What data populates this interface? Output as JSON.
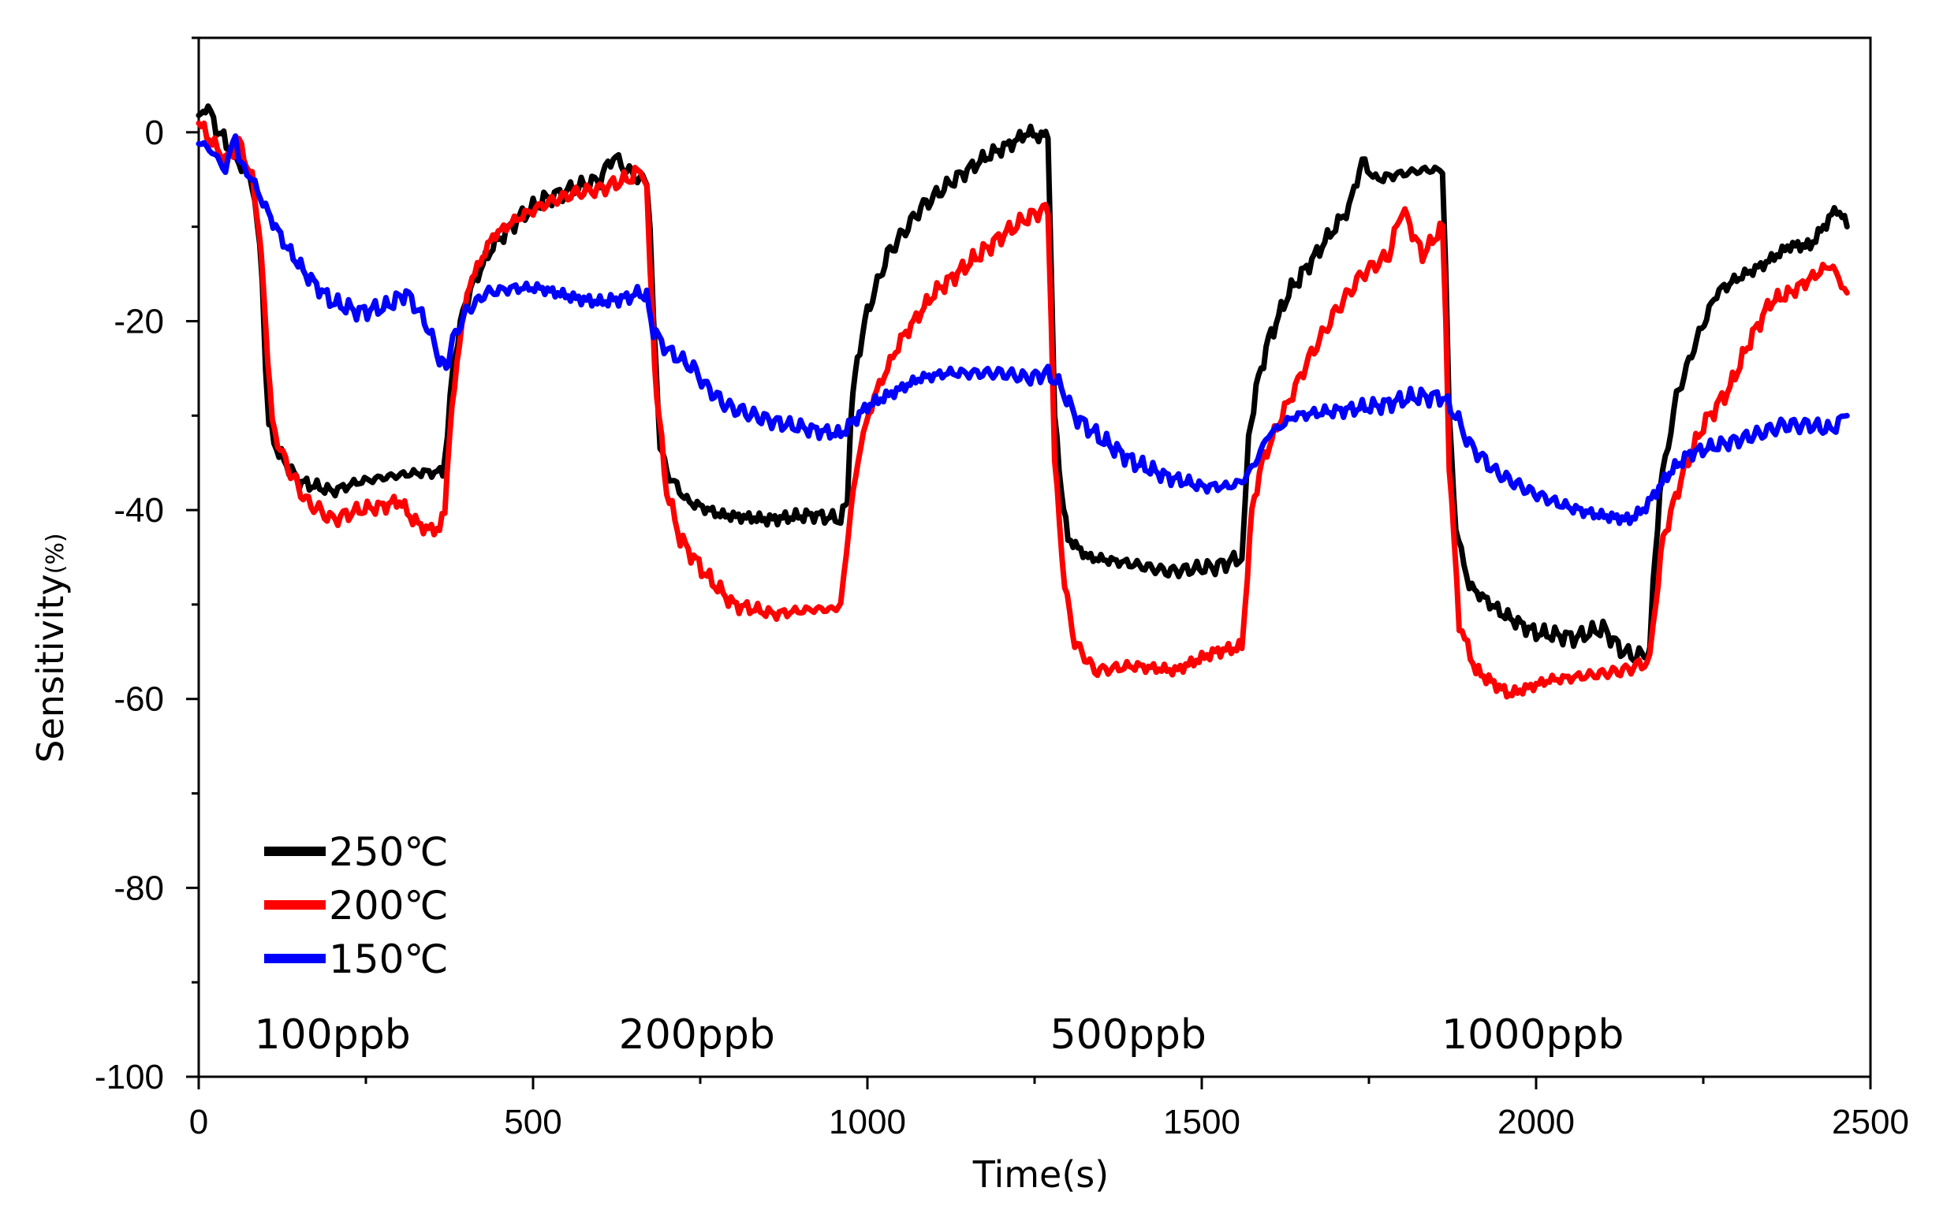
{
  "chart_data": {
    "type": "line",
    "title": "",
    "xlabel": "Time(s)",
    "ylabel": "Sensitivity",
    "ylabel_unit": "(%)",
    "xlim": [
      0,
      2500
    ],
    "ylim": [
      -100,
      10
    ],
    "x_ticks": [
      0,
      500,
      1000,
      1500,
      2000,
      2500
    ],
    "y_ticks": [
      0,
      -20,
      -40,
      -60,
      -80,
      -100
    ],
    "x_tick_labels": [
      "0",
      "500",
      "1000",
      "1500",
      "2000",
      "2500"
    ],
    "y_tick_labels": [
      "0",
      "-20",
      "-40",
      "-60",
      "-80",
      "-100"
    ],
    "grid": false,
    "legend_position": "bottom-left",
    "series": [
      {
        "name": "250℃",
        "color": "#000000",
        "points": [
          [
            0,
            1
          ],
          [
            10,
            3
          ],
          [
            30,
            0
          ],
          [
            60,
            -3
          ],
          [
            80,
            -5
          ],
          [
            95,
            -15
          ],
          [
            100,
            -25
          ],
          [
            105,
            -31
          ],
          [
            120,
            -34
          ],
          [
            150,
            -37
          ],
          [
            200,
            -38
          ],
          [
            240,
            -37
          ],
          [
            280,
            -36.5
          ],
          [
            310,
            -36.2
          ],
          [
            340,
            -36
          ],
          [
            365,
            -36
          ],
          [
            372,
            -32
          ],
          [
            380,
            -25
          ],
          [
            395,
            -19
          ],
          [
            410,
            -16
          ],
          [
            440,
            -12
          ],
          [
            480,
            -9
          ],
          [
            520,
            -7
          ],
          [
            560,
            -6
          ],
          [
            600,
            -5
          ],
          [
            620,
            -2.5
          ],
          [
            640,
            -4
          ],
          [
            660,
            -5
          ],
          [
            670,
            -5
          ],
          [
            675,
            -10
          ],
          [
            680,
            -20
          ],
          [
            690,
            -33
          ],
          [
            700,
            -36
          ],
          [
            730,
            -39
          ],
          [
            780,
            -40.5
          ],
          [
            850,
            -41
          ],
          [
            920,
            -40.5
          ],
          [
            960,
            -41
          ],
          [
            970,
            -39
          ],
          [
            975,
            -30
          ],
          [
            985,
            -24
          ],
          [
            1000,
            -19
          ],
          [
            1030,
            -13
          ],
          [
            1080,
            -8
          ],
          [
            1130,
            -5
          ],
          [
            1180,
            -2.5
          ],
          [
            1220,
            -1
          ],
          [
            1240,
            0
          ],
          [
            1260,
            -0.5
          ],
          [
            1270,
            0
          ],
          [
            1275,
            -15
          ],
          [
            1280,
            -30
          ],
          [
            1290,
            -38
          ],
          [
            1300,
            -43
          ],
          [
            1330,
            -45
          ],
          [
            1380,
            -45.5
          ],
          [
            1450,
            -46.5
          ],
          [
            1520,
            -46
          ],
          [
            1560,
            -45
          ],
          [
            1565,
            -40
          ],
          [
            1570,
            -32
          ],
          [
            1585,
            -26
          ],
          [
            1600,
            -22
          ],
          [
            1630,
            -17
          ],
          [
            1680,
            -12
          ],
          [
            1720,
            -8
          ],
          [
            1740,
            -3
          ],
          [
            1760,
            -5
          ],
          [
            1790,
            -4.5
          ],
          [
            1830,
            -4
          ],
          [
            1860,
            -4
          ],
          [
            1865,
            -15
          ],
          [
            1870,
            -30
          ],
          [
            1880,
            -42
          ],
          [
            1900,
            -48
          ],
          [
            1950,
            -51
          ],
          [
            2000,
            -53
          ],
          [
            2060,
            -53.5
          ],
          [
            2100,
            -52.5
          ],
          [
            2130,
            -55
          ],
          [
            2150,
            -55.5
          ],
          [
            2170,
            -55
          ],
          [
            2175,
            -48
          ],
          [
            2185,
            -38
          ],
          [
            2210,
            -28
          ],
          [
            2240,
            -22
          ],
          [
            2270,
            -17
          ],
          [
            2300,
            -15.5
          ],
          [
            2340,
            -14
          ],
          [
            2380,
            -12
          ],
          [
            2410,
            -12
          ],
          [
            2430,
            -10
          ],
          [
            2450,
            -8
          ],
          [
            2465,
            -10
          ]
        ]
      },
      {
        "name": "200℃",
        "color": "#ff0000",
        "points": [
          [
            0,
            1
          ],
          [
            20,
            -1
          ],
          [
            40,
            -3
          ],
          [
            60,
            -1
          ],
          [
            80,
            -5
          ],
          [
            90,
            -10
          ],
          [
            100,
            -20
          ],
          [
            110,
            -31
          ],
          [
            130,
            -35
          ],
          [
            160,
            -39
          ],
          [
            200,
            -41
          ],
          [
            240,
            -40
          ],
          [
            280,
            -39.5
          ],
          [
            300,
            -39
          ],
          [
            320,
            -41
          ],
          [
            340,
            -42
          ],
          [
            360,
            -42
          ],
          [
            368,
            -40
          ],
          [
            375,
            -32
          ],
          [
            390,
            -22
          ],
          [
            405,
            -16
          ],
          [
            440,
            -11
          ],
          [
            480,
            -9
          ],
          [
            520,
            -7.5
          ],
          [
            560,
            -6.5
          ],
          [
            600,
            -6
          ],
          [
            640,
            -5
          ],
          [
            665,
            -4
          ],
          [
            670,
            -6
          ],
          [
            675,
            -15
          ],
          [
            685,
            -28
          ],
          [
            700,
            -38
          ],
          [
            720,
            -43
          ],
          [
            760,
            -47
          ],
          [
            800,
            -50
          ],
          [
            860,
            -51
          ],
          [
            920,
            -50.5
          ],
          [
            950,
            -50.5
          ],
          [
            960,
            -50
          ],
          [
            965,
            -47
          ],
          [
            975,
            -40
          ],
          [
            990,
            -33
          ],
          [
            1010,
            -28
          ],
          [
            1050,
            -22
          ],
          [
            1100,
            -17
          ],
          [
            1150,
            -14
          ],
          [
            1200,
            -11
          ],
          [
            1240,
            -9
          ],
          [
            1270,
            -8
          ],
          [
            1275,
            -20
          ],
          [
            1280,
            -35
          ],
          [
            1295,
            -48
          ],
          [
            1310,
            -54
          ],
          [
            1340,
            -57
          ],
          [
            1400,
            -56.5
          ],
          [
            1460,
            -57
          ],
          [
            1520,
            -55
          ],
          [
            1560,
            -54.5
          ],
          [
            1565,
            -50
          ],
          [
            1575,
            -40
          ],
          [
            1590,
            -35
          ],
          [
            1620,
            -30
          ],
          [
            1660,
            -24
          ],
          [
            1700,
            -19
          ],
          [
            1740,
            -15
          ],
          [
            1780,
            -13
          ],
          [
            1800,
            -8
          ],
          [
            1830,
            -13
          ],
          [
            1860,
            -10
          ],
          [
            1865,
            -20
          ],
          [
            1870,
            -35
          ],
          [
            1885,
            -52
          ],
          [
            1910,
            -57
          ],
          [
            1960,
            -59.5
          ],
          [
            2020,
            -58
          ],
          [
            2080,
            -57.5
          ],
          [
            2130,
            -57
          ],
          [
            2170,
            -56
          ],
          [
            2175,
            -52
          ],
          [
            2190,
            -43
          ],
          [
            2220,
            -36
          ],
          [
            2250,
            -31
          ],
          [
            2290,
            -27
          ],
          [
            2320,
            -22
          ],
          [
            2350,
            -18
          ],
          [
            2380,
            -17
          ],
          [
            2410,
            -15.5
          ],
          [
            2440,
            -14
          ],
          [
            2465,
            -17
          ]
        ]
      },
      {
        "name": "150℃",
        "color": "#0000ff",
        "points": [
          [
            0,
            -1
          ],
          [
            20,
            -2
          ],
          [
            40,
            -4
          ],
          [
            55,
            0
          ],
          [
            60,
            -3
          ],
          [
            80,
            -5
          ],
          [
            100,
            -8
          ],
          [
            130,
            -12
          ],
          [
            160,
            -15
          ],
          [
            200,
            -18
          ],
          [
            240,
            -19
          ],
          [
            280,
            -18.5
          ],
          [
            310,
            -17
          ],
          [
            330,
            -19
          ],
          [
            345,
            -21
          ],
          [
            360,
            -24
          ],
          [
            370,
            -25
          ],
          [
            380,
            -22
          ],
          [
            400,
            -19
          ],
          [
            430,
            -17
          ],
          [
            470,
            -16.5
          ],
          [
            510,
            -16.5
          ],
          [
            560,
            -17.5
          ],
          [
            600,
            -18
          ],
          [
            640,
            -17.5
          ],
          [
            660,
            -17
          ],
          [
            670,
            -17.5
          ],
          [
            680,
            -21
          ],
          [
            700,
            -23
          ],
          [
            740,
            -25
          ],
          [
            760,
            -27
          ],
          [
            790,
            -29
          ],
          [
            830,
            -30
          ],
          [
            880,
            -31
          ],
          [
            920,
            -31.5
          ],
          [
            960,
            -32
          ],
          [
            980,
            -30.5
          ],
          [
            1000,
            -29
          ],
          [
            1040,
            -27.5
          ],
          [
            1080,
            -26
          ],
          [
            1120,
            -25.5
          ],
          [
            1160,
            -25.5
          ],
          [
            1200,
            -25.5
          ],
          [
            1240,
            -26
          ],
          [
            1270,
            -25.5
          ],
          [
            1290,
            -27
          ],
          [
            1310,
            -30
          ],
          [
            1350,
            -32.5
          ],
          [
            1400,
            -35
          ],
          [
            1450,
            -36.5
          ],
          [
            1500,
            -37.5
          ],
          [
            1540,
            -37.5
          ],
          [
            1560,
            -37
          ],
          [
            1580,
            -35
          ],
          [
            1600,
            -32
          ],
          [
            1640,
            -30
          ],
          [
            1700,
            -29.5
          ],
          [
            1760,
            -29
          ],
          [
            1820,
            -28
          ],
          [
            1860,
            -28
          ],
          [
            1880,
            -30
          ],
          [
            1900,
            -33
          ],
          [
            1940,
            -36
          ],
          [
            1990,
            -38
          ],
          [
            2040,
            -39.5
          ],
          [
            2090,
            -40.5
          ],
          [
            2140,
            -41
          ],
          [
            2160,
            -40
          ],
          [
            2180,
            -38
          ],
          [
            2200,
            -36
          ],
          [
            2230,
            -34
          ],
          [
            2280,
            -33
          ],
          [
            2330,
            -32
          ],
          [
            2370,
            -31
          ],
          [
            2410,
            -31
          ],
          [
            2440,
            -31.5
          ],
          [
            2465,
            -30
          ]
        ]
      }
    ],
    "annotations": [
      {
        "text": "100ppb",
        "x": 200,
        "y": -95.5
      },
      {
        "text": "200ppb",
        "x": 745,
        "y": -95.5
      },
      {
        "text": "500ppb",
        "x": 1390,
        "y": -95.5
      },
      {
        "text": "1000ppb",
        "x": 1995,
        "y": -95.5
      }
    ]
  }
}
